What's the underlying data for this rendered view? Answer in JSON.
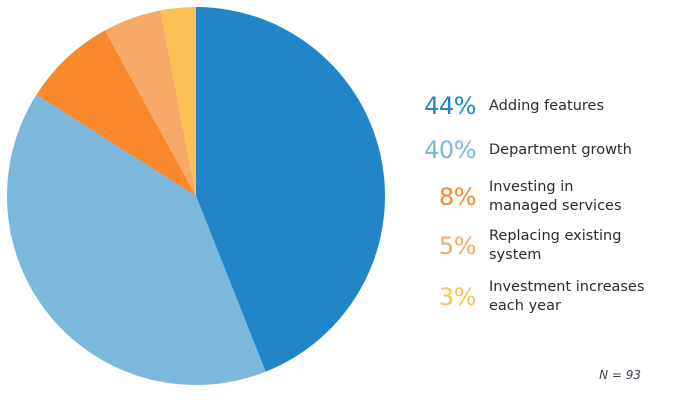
{
  "chart_data": {
    "type": "pie",
    "title": "",
    "start_angle": "12 o'clock",
    "direction": "clockwise",
    "legend_position": "right",
    "background_color": "#ffffff",
    "series": [
      {
        "label": "Adding features",
        "value": 44,
        "color": "#2185C8"
      },
      {
        "label": "Department growth",
        "value": 40,
        "color": "#7BB8DB"
      },
      {
        "label": "Investing in managed services",
        "value": 8,
        "color": "#F8882B"
      },
      {
        "label": "Replacing existing system",
        "value": 5,
        "color": "#F9A967"
      },
      {
        "label": "Investment increases each year",
        "value": 3,
        "color": "#FBC157"
      }
    ],
    "sample_note": "N = 93"
  },
  "legend": {
    "items": [
      {
        "pct": "44%",
        "label": "Adding features",
        "color": "#2185C8"
      },
      {
        "pct": "40%",
        "label": "Department growth",
        "color": "#7BB8DB"
      },
      {
        "pct": "8%",
        "label": "Investing in\nmanaged services",
        "color": "#F8882B"
      },
      {
        "pct": "5%",
        "label": "Replacing existing\nsystem",
        "color": "#F9A967"
      },
      {
        "pct": "3%",
        "label": "Investment increases\neach year",
        "color": "#FBC157"
      }
    ]
  },
  "footnote": {
    "text": "N = 93"
  }
}
